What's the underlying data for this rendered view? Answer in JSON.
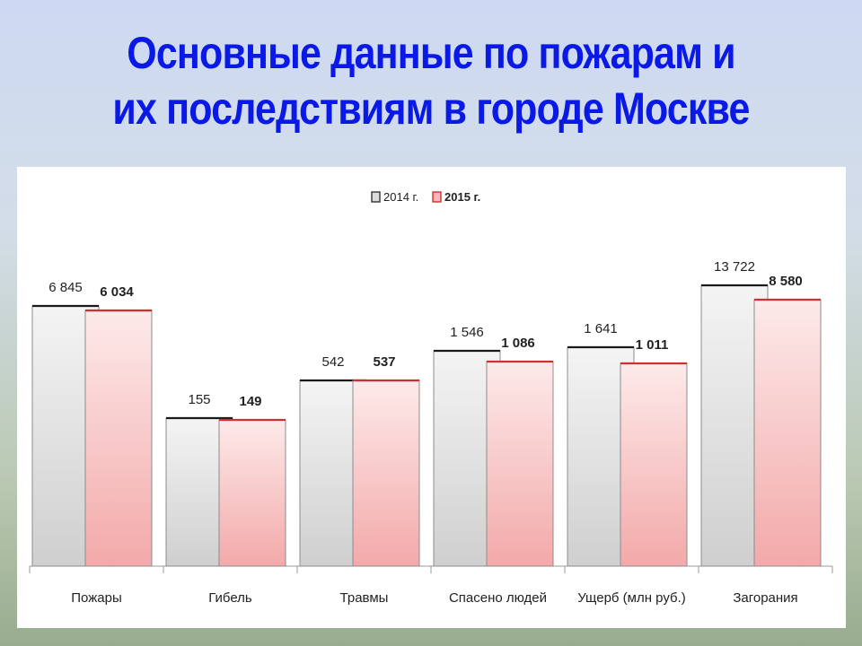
{
  "title": {
    "line1": "Основные данные по пожарам и",
    "line2": "их последствиям в городе Москве"
  },
  "chart_data": {
    "type": "bar",
    "categories": [
      "Пожары",
      "Гибель",
      "Травмы",
      "Спасено людей",
      "Ущерб (млн руб.)",
      "Загорания"
    ],
    "series": [
      {
        "name": "2014 г.",
        "values": [
          6845,
          155,
          542,
          1546,
          1641,
          13722
        ],
        "labels": [
          "6 845",
          "155",
          "542",
          "1 546",
          "1 641",
          "13 722"
        ],
        "color": "#dcdcdc",
        "edge": "#1a1a1a"
      },
      {
        "name": "2015 г.",
        "values": [
          6034,
          149,
          537,
          1086,
          1011,
          8580
        ],
        "labels": [
          "6 034",
          "149",
          "537",
          "1 086",
          "1 011",
          "8 580"
        ],
        "color": "#f6b8b8",
        "edge": "#d23030"
      }
    ],
    "bar_heights": [
      [
        290,
        165,
        207,
        240,
        244,
        313
      ],
      [
        285,
        163,
        207,
        228,
        226,
        297
      ]
    ],
    "legend": "top-center",
    "grid": false
  }
}
